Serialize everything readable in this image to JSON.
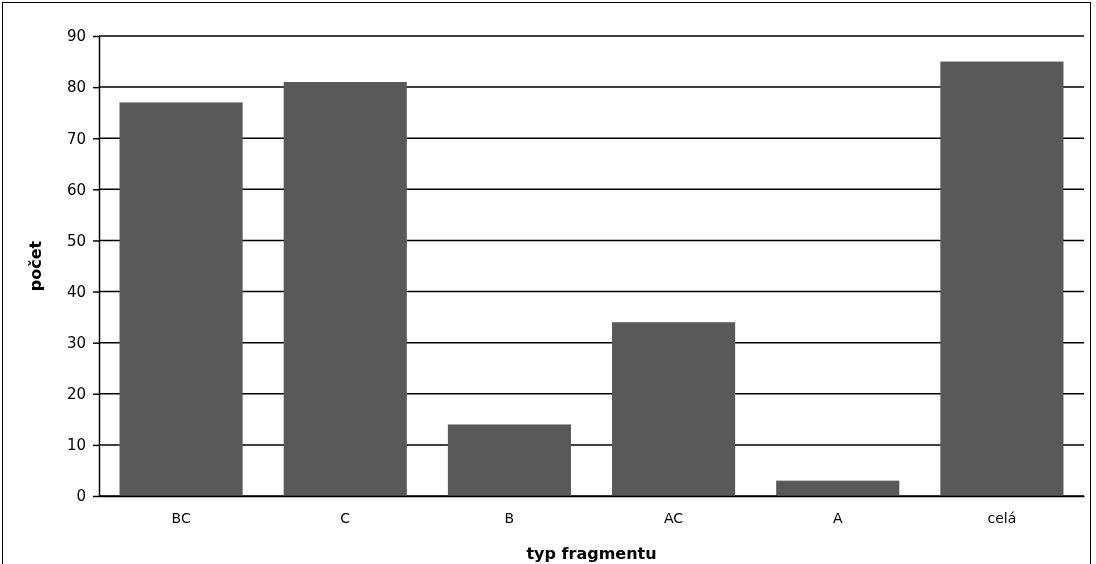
{
  "chart_data": {
    "type": "bar",
    "xlabel": "typ fragmentu",
    "ylabel": "počet",
    "categories": [
      "BC",
      "C",
      "B",
      "AC",
      "A",
      "celá"
    ],
    "values": [
      77,
      81,
      14,
      34,
      3,
      85
    ],
    "color": "#595959",
    "ylim": [
      0,
      90
    ],
    "yticks": [
      0,
      10,
      20,
      30,
      40,
      50,
      60,
      70,
      80,
      90
    ],
    "grid": "y"
  }
}
